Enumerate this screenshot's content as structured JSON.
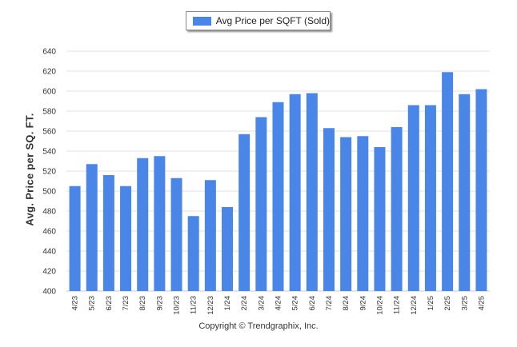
{
  "copyright": "Copyright © Trendgraphix, Inc.",
  "chart_data": {
    "type": "bar",
    "title": "",
    "xlabel": "",
    "ylabel": "Avg. Price per SQ. FT.",
    "legend": {
      "position": "top-center",
      "entries": [
        "Avg Price per SQFT (Sold)"
      ]
    },
    "grid": true,
    "ylim": [
      400,
      640
    ],
    "yticks": [
      400,
      420,
      440,
      460,
      480,
      500,
      520,
      540,
      560,
      580,
      600,
      620,
      640
    ],
    "categories": [
      "4/23",
      "5/23",
      "6/23",
      "7/23",
      "8/23",
      "9/23",
      "10/23",
      "11/23",
      "12/23",
      "1/24",
      "2/24",
      "3/24",
      "4/24",
      "5/24",
      "6/24",
      "7/24",
      "8/24",
      "9/24",
      "10/24",
      "11/24",
      "12/24",
      "1/25",
      "2/25",
      "3/25",
      "4/25"
    ],
    "series": [
      {
        "name": "Avg Price per SQFT (Sold)",
        "color": "#4a86e8",
        "values": [
          505,
          527,
          516,
          505,
          533,
          535,
          513,
          475,
          511,
          484,
          557,
          574,
          589,
          597,
          598,
          563,
          554,
          555,
          544,
          564,
          586,
          586,
          619,
          597,
          602
        ]
      }
    ]
  }
}
